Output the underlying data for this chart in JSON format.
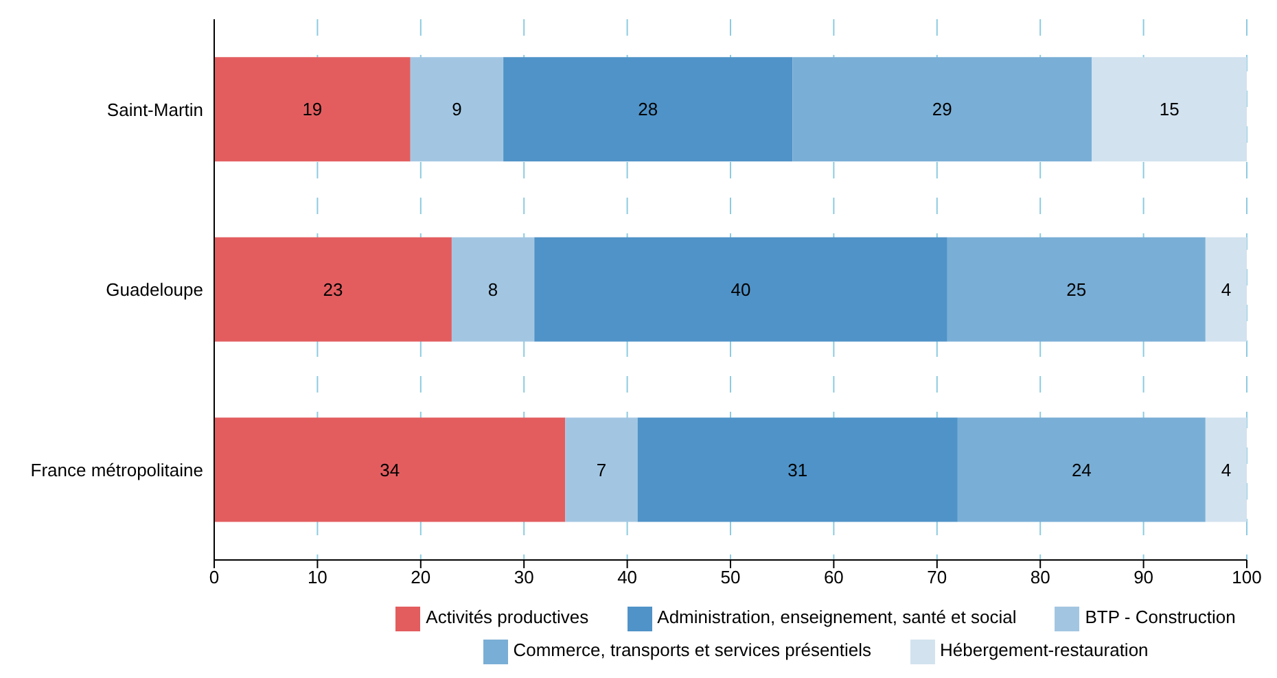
{
  "chart_data": {
    "type": "bar",
    "orientation": "horizontal",
    "stacked": true,
    "categories": [
      "Saint-Martin",
      "Guadeloupe",
      "France métropolitaine"
    ],
    "series": [
      {
        "name": "Activités productives",
        "color": "#e35d5f",
        "values": [
          19,
          23,
          34
        ]
      },
      {
        "name": "BTP - Construction",
        "color": "#a2c6e2",
        "values": [
          9,
          8,
          7
        ]
      },
      {
        "name": "Administration, enseignement, santé et social",
        "color": "#4f93c8",
        "values": [
          28,
          40,
          31
        ]
      },
      {
        "name": "Commerce, transports et services présentiels",
        "color": "#79aed6",
        "values": [
          29,
          25,
          24
        ]
      },
      {
        "name": "Hébergement-restauration",
        "color": "#d2e2ef",
        "values": [
          15,
          4,
          4
        ]
      }
    ],
    "xlim": [
      0,
      100
    ],
    "xticks": [
      0,
      10,
      20,
      30,
      40,
      50,
      60,
      70,
      80,
      90,
      100
    ],
    "grid": "x",
    "legend": "bottom",
    "data_labels": true
  }
}
